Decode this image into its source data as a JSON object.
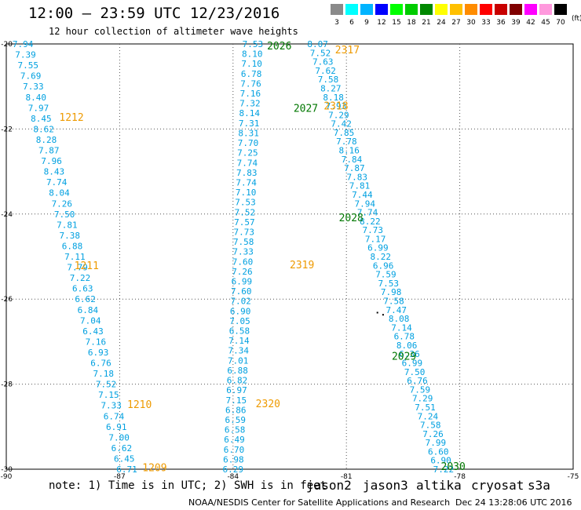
{
  "header": {
    "title": "12:00 – 23:59 UTC 12/23/2016",
    "subtitle": "12 hour collection of altimeter wave heights"
  },
  "scale": {
    "colors": [
      "#8a8a8a",
      "#00ffff",
      "#00b4ff",
      "#0000ff",
      "#00ff00",
      "#00cc00",
      "#008800",
      "#ffff00",
      "#ffc000",
      "#ff8c00",
      "#ff0000",
      "#c80000",
      "#800000",
      "#ff00ff",
      "#ff99dd",
      "#000000"
    ],
    "labels": [
      "3",
      "6",
      "9",
      "12",
      "15",
      "18",
      "21",
      "24",
      "27",
      "30",
      "33",
      "36",
      "39",
      "42",
      "45",
      "70"
    ],
    "unit": "(ft)"
  },
  "map": {
    "lon_min": -90,
    "lon_max": -75,
    "lat_min": -30,
    "lat_max": -20,
    "lon_ticks": [
      "-90",
      "-87",
      "-84",
      "-81",
      "-78",
      "-75"
    ],
    "lat_ticks": [
      "-20",
      "-22",
      "-24",
      "-26",
      "-28",
      "-30"
    ],
    "value_color": "#00a0e0",
    "tracks": [
      {
        "id": "t1",
        "lon_start": -89.56,
        "lon_end": -86.81,
        "values": [
          "7.94",
          "7.39",
          "7.55",
          "7.69",
          "7.33",
          "8.40",
          "7.97",
          "8.45",
          "8.62",
          "8.28",
          "7.87",
          "7.96",
          "8.43",
          "7.74",
          "8.04",
          "7.26",
          "7.50",
          "7.81",
          "7.38",
          "6.88",
          "7.11",
          "7.79",
          "7.22",
          "6.63",
          "6.62",
          "6.84",
          "7.04",
          "6.43",
          "7.16",
          "6.93",
          "6.76",
          "7.18",
          "7.52",
          "7.15",
          "7.33",
          "6.74",
          "6.91",
          "7.00",
          "6.62",
          "6.45",
          "6.71"
        ]
      },
      {
        "id": "t2",
        "lon_start": -83.48,
        "lon_end": -84.0,
        "values": [
          "7.53",
          "8.10",
          "7.10",
          "6.78",
          "7.76",
          "7.16",
          "7.32",
          "8.14",
          "7.31",
          "8.31",
          "7.70",
          "7.25",
          "7.74",
          "7.83",
          "7.74",
          "7.10",
          "7.53",
          "7.52",
          "7.57",
          "7.73",
          "7.58",
          "7.33",
          "7.60",
          "7.26",
          "6.99",
          "7.60",
          "7.02",
          "6.90",
          "7.05",
          "6.58",
          "7.14",
          "7.34",
          "7.01",
          "6.88",
          "6.82",
          "6.97",
          "7.15",
          "6.86",
          "6.59",
          "6.58",
          "6.49",
          "6.70",
          "6.98",
          "6.29"
        ]
      },
      {
        "id": "t3",
        "lon_start": -81.76,
        "lon_end": -78.43,
        "values": [
          "8.07",
          "7.52",
          "7.63",
          "7.62",
          "7.58",
          "8.27",
          "8.18",
          "7.93",
          "7.29",
          "7.42",
          "7.85",
          "7.78",
          "8.16",
          "7.84",
          "7.87",
          "7.83",
          "7.81",
          "7.44",
          "7.94",
          "7.74",
          "8.22",
          "7.73",
          "7.17",
          "6.99",
          "8.22",
          "6.96",
          "7.59",
          "7.53",
          "7.98",
          "7.58",
          "7.47",
          "8.08",
          "7.14",
          "6.78",
          "8.06",
          "6.36",
          "6.99",
          "7.50",
          "6.76",
          "7.59",
          "7.29",
          "7.51",
          "7.24",
          "7.58",
          "7.26",
          "7.99",
          "6.60",
          "6.90",
          "7.22"
        ]
      }
    ],
    "labels": [
      {
        "text": "2026",
        "lon": -83.1,
        "lat": -20.04,
        "color": "#007700"
      },
      {
        "text": "2317",
        "lon": -81.3,
        "lat": -20.13,
        "color": "#ee9a00"
      },
      {
        "text": "2027",
        "lon": -82.4,
        "lat": -21.5,
        "color": "#007700"
      },
      {
        "text": "2318",
        "lon": -81.6,
        "lat": -21.45,
        "color": "#ee9a00"
      },
      {
        "text": "1212",
        "lon": -88.6,
        "lat": -21.72,
        "color": "#ee9a00"
      },
      {
        "text": "2028",
        "lon": -81.2,
        "lat": -24.08,
        "color": "#007700"
      },
      {
        "text": "1211",
        "lon": -88.2,
        "lat": -25.2,
        "color": "#ee9a00"
      },
      {
        "text": "2319",
        "lon": -82.5,
        "lat": -25.18,
        "color": "#ee9a00"
      },
      {
        "text": "2029",
        "lon": -79.8,
        "lat": -27.33,
        "color": "#007700"
      },
      {
        "text": "1210",
        "lon": -86.8,
        "lat": -28.47,
        "color": "#ee9a00"
      },
      {
        "text": "2320",
        "lon": -83.4,
        "lat": -28.45,
        "color": "#ee9a00"
      },
      {
        "text": "1209",
        "lon": -86.4,
        "lat": -29.95,
        "color": "#ee9a00"
      },
      {
        "text": "2030",
        "lon": -78.5,
        "lat": -29.93,
        "color": "#007700"
      }
    ]
  },
  "note": "note: 1) Time is in UTC; 2) SWH is in feet",
  "satellites": [
    {
      "name": "jason2",
      "color": "#0000dd"
    },
    {
      "name": "jason3",
      "color": "#008800"
    },
    {
      "name": "altika",
      "color": "#ee9a00"
    },
    {
      "name": "cryosat",
      "color": "#dd0000"
    },
    {
      "name": "s3a",
      "color": "#880000"
    }
  ],
  "footer": {
    "credit": "NOAA/NESDIS Center for Satellite Applications and Research",
    "timestamp": "Dec 24 13:28:06 UTC 2016"
  }
}
